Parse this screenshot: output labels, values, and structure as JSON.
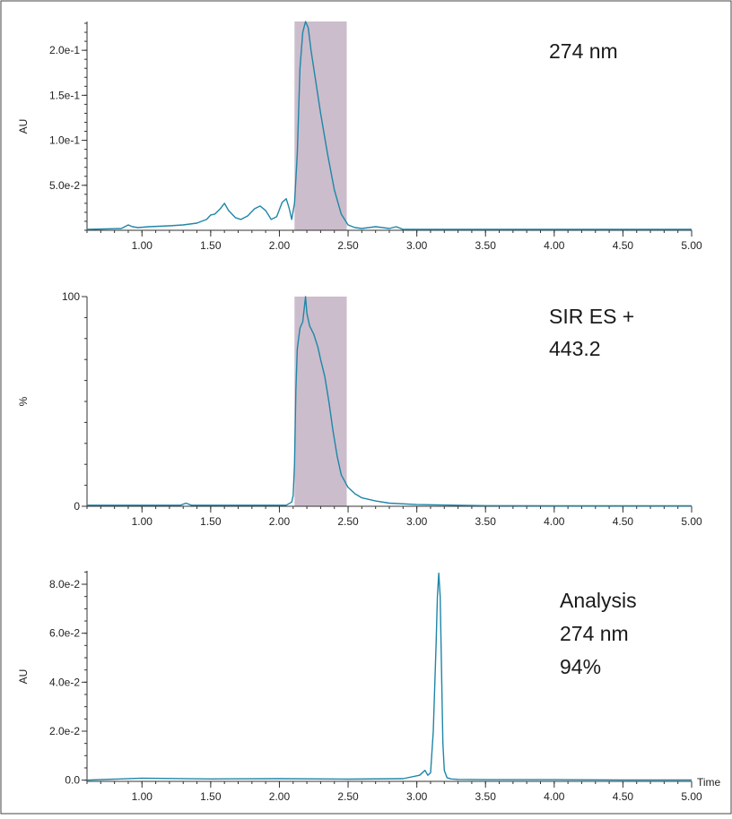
{
  "colors": {
    "trace": "#1f86a8",
    "fraction_band": "#cbbdcc",
    "axis": "#333333",
    "border": "#444444"
  },
  "chart_data": [
    {
      "type": "line",
      "title": "",
      "annotation_lines": [
        "274 nm"
      ],
      "ylabel": "AU",
      "xlabel": "",
      "xlim": [
        0.6,
        5.0
      ],
      "ylim": [
        0,
        0.232
      ],
      "x_ticks": [
        "1.00",
        "1.50",
        "2.00",
        "2.50",
        "3.00",
        "3.50",
        "4.00",
        "4.50",
        "5.00"
      ],
      "y_ticks": [
        {
          "value": 0.05,
          "label": "5.0e-2"
        },
        {
          "value": 0.1,
          "label": "1.0e-1"
        },
        {
          "value": 0.15,
          "label": "1.5e-1"
        },
        {
          "value": 0.2,
          "label": "2.0e-1"
        }
      ],
      "highlight_region": [
        2.11,
        2.49
      ],
      "grid": false,
      "series": [
        {
          "x": [
            0.6,
            0.85,
            0.9,
            0.93,
            0.97,
            1.05,
            1.2,
            1.3,
            1.4,
            1.47,
            1.5,
            1.53,
            1.57,
            1.6,
            1.63,
            1.68,
            1.72,
            1.77,
            1.82,
            1.86,
            1.9,
            1.94,
            1.98,
            2.02,
            2.05,
            2.07,
            2.09,
            2.11,
            2.13,
            2.15,
            2.17,
            2.19,
            2.21,
            2.23,
            2.26,
            2.3,
            2.35,
            2.4,
            2.45,
            2.5,
            2.55,
            2.6,
            2.7,
            2.8,
            2.85,
            2.9,
            3.0,
            3.5,
            4.0,
            4.5,
            5.0
          ],
          "y": [
            0.001,
            0.002,
            0.006,
            0.004,
            0.003,
            0.004,
            0.005,
            0.006,
            0.008,
            0.012,
            0.017,
            0.018,
            0.024,
            0.03,
            0.022,
            0.014,
            0.012,
            0.016,
            0.024,
            0.027,
            0.022,
            0.012,
            0.015,
            0.031,
            0.035,
            0.025,
            0.012,
            0.03,
            0.085,
            0.18,
            0.22,
            0.232,
            0.225,
            0.2,
            0.17,
            0.13,
            0.085,
            0.045,
            0.018,
            0.006,
            0.003,
            0.002,
            0.004,
            0.002,
            0.004,
            0.001,
            0.001,
            0.001,
            0.001,
            0.001,
            0.001
          ]
        }
      ]
    },
    {
      "type": "line",
      "title": "",
      "annotation_lines": [
        "SIR ES +",
        "443.2"
      ],
      "ylabel": "%",
      "xlabel": "",
      "xlim": [
        0.6,
        5.0
      ],
      "ylim": [
        0,
        100
      ],
      "x_ticks": [
        "1.00",
        "1.50",
        "2.00",
        "2.50",
        "3.00",
        "3.50",
        "4.00",
        "4.50",
        "5.00"
      ],
      "y_ticks": [
        {
          "value": 0,
          "label": "0"
        },
        {
          "value": 100,
          "label": "100"
        }
      ],
      "highlight_region": [
        2.11,
        2.49
      ],
      "grid": false,
      "series": [
        {
          "x": [
            0.6,
            1.0,
            1.28,
            1.32,
            1.36,
            1.7,
            2.05,
            2.09,
            2.1,
            2.11,
            2.12,
            2.13,
            2.15,
            2.17,
            2.19,
            2.2,
            2.22,
            2.25,
            2.28,
            2.3,
            2.33,
            2.36,
            2.39,
            2.42,
            2.45,
            2.5,
            2.55,
            2.6,
            2.7,
            2.8,
            3.0,
            3.5,
            4.0,
            4.5,
            5.0
          ],
          "y": [
            0.5,
            0.5,
            0.5,
            1.5,
            0.5,
            0.5,
            0.5,
            2,
            5,
            20,
            55,
            75,
            85,
            88,
            100,
            92,
            86,
            82,
            76,
            70,
            62,
            50,
            36,
            24,
            15,
            9,
            6,
            4,
            2.5,
            1.5,
            0.8,
            0.3,
            0.2,
            0.2,
            0.2
          ]
        }
      ]
    },
    {
      "type": "line",
      "title": "",
      "annotation_lines": [
        "Analysis",
        "274 nm",
        "94%"
      ],
      "ylabel": "AU",
      "xlabel": "Time",
      "xlim": [
        0.6,
        5.0
      ],
      "ylim": [
        -0.0005,
        0.0855
      ],
      "x_ticks": [
        "1.00",
        "1.50",
        "2.00",
        "2.50",
        "3.00",
        "3.50",
        "4.00",
        "4.50",
        "5.00"
      ],
      "y_ticks": [
        {
          "value": 0.0,
          "label": "0.0"
        },
        {
          "value": 0.02,
          "label": "2.0e-2"
        },
        {
          "value": 0.04,
          "label": "4.0e-2"
        },
        {
          "value": 0.06,
          "label": "6.0e-2"
        },
        {
          "value": 0.08,
          "label": "8.0e-2"
        }
      ],
      "highlight_region": null,
      "grid": false,
      "series": [
        {
          "x": [
            0.6,
            1.0,
            1.5,
            2.0,
            2.5,
            2.9,
            3.02,
            3.06,
            3.08,
            3.1,
            3.12,
            3.14,
            3.15,
            3.16,
            3.17,
            3.18,
            3.19,
            3.2,
            3.22,
            3.25,
            3.3,
            3.5,
            4.0,
            4.5,
            5.0
          ],
          "y": [
            0.0,
            0.0008,
            0.0005,
            0.0006,
            0.0004,
            0.0006,
            0.002,
            0.004,
            0.002,
            0.003,
            0.02,
            0.055,
            0.075,
            0.0845,
            0.075,
            0.045,
            0.015,
            0.004,
            0.001,
            0.0005,
            0.0003,
            0.0002,
            0.0002,
            0.0001,
            0.0001
          ]
        }
      ]
    }
  ]
}
